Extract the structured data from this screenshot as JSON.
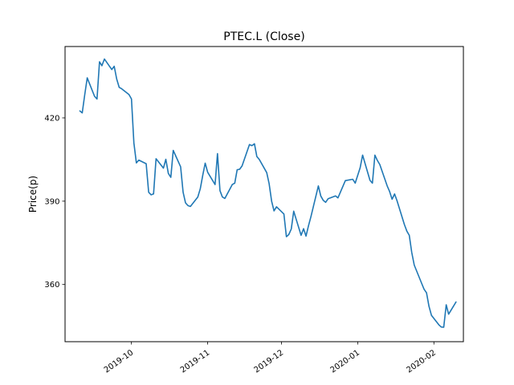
{
  "chart_data": {
    "type": "line",
    "title": "PTEC.L (Close)",
    "ylabel": "Price(p)",
    "xlabel": "",
    "grid": false,
    "legend": false,
    "series_color": "#1f77b4",
    "tick_color": "#000000",
    "background_color": "#ffffff",
    "ylim": [
      339.4,
      445.7
    ],
    "xlim_dates": [
      "2019-09-04",
      "2020-02-13"
    ],
    "yticks": [
      420,
      390,
      360
    ],
    "xticks": [
      {
        "date": "2019-10-01",
        "label": "2019-10"
      },
      {
        "date": "2019-11-01",
        "label": "2019-11"
      },
      {
        "date": "2019-12-01",
        "label": "2019-12"
      },
      {
        "date": "2020-01-01",
        "label": "2020-01"
      },
      {
        "date": "2020-02-01",
        "label": "2020-02"
      }
    ],
    "series": [
      {
        "name": "Close",
        "points": [
          [
            "2019-09-10",
            422.5
          ],
          [
            "2019-09-11",
            421.8
          ],
          [
            "2019-09-12",
            428.3
          ],
          [
            "2019-09-13",
            434.4
          ],
          [
            "2019-09-16",
            427.8
          ],
          [
            "2019-09-17",
            426.8
          ],
          [
            "2019-09-18",
            440.2
          ],
          [
            "2019-09-19",
            438.8
          ],
          [
            "2019-09-20",
            441.2
          ],
          [
            "2019-09-23",
            437.4
          ],
          [
            "2019-09-24",
            438.6
          ],
          [
            "2019-09-25",
            434.0
          ],
          [
            "2019-09-26",
            431.0
          ],
          [
            "2019-09-27",
            430.5
          ],
          [
            "2019-09-30",
            428.4
          ],
          [
            "2019-10-01",
            426.8
          ],
          [
            "2019-10-02",
            411.0
          ],
          [
            "2019-10-03",
            403.8
          ],
          [
            "2019-10-04",
            404.8
          ],
          [
            "2019-10-07",
            403.5
          ],
          [
            "2019-10-08",
            393.2
          ],
          [
            "2019-10-09",
            392.3
          ],
          [
            "2019-10-10",
            392.6
          ],
          [
            "2019-10-11",
            405.3
          ],
          [
            "2019-10-14",
            401.9
          ],
          [
            "2019-10-15",
            405.1
          ],
          [
            "2019-10-16",
            400.0
          ],
          [
            "2019-10-17",
            398.6
          ],
          [
            "2019-10-18",
            408.3
          ],
          [
            "2019-10-21",
            402.4
          ],
          [
            "2019-10-22",
            393.2
          ],
          [
            "2019-10-23",
            389.4
          ],
          [
            "2019-10-24",
            388.4
          ],
          [
            "2019-10-25",
            388.1
          ],
          [
            "2019-10-28",
            391.5
          ],
          [
            "2019-10-29",
            394.5
          ],
          [
            "2019-10-30",
            399.4
          ],
          [
            "2019-10-31",
            403.7
          ],
          [
            "2019-11-01",
            400.4
          ],
          [
            "2019-11-04",
            396.0
          ],
          [
            "2019-11-05",
            407.1
          ],
          [
            "2019-11-06",
            393.8
          ],
          [
            "2019-11-07",
            391.5
          ],
          [
            "2019-11-08",
            391.0
          ],
          [
            "2019-11-11",
            396.0
          ],
          [
            "2019-11-12",
            396.5
          ],
          [
            "2019-11-13",
            401.3
          ],
          [
            "2019-11-14",
            401.5
          ],
          [
            "2019-11-15",
            402.7
          ],
          [
            "2019-11-18",
            410.4
          ],
          [
            "2019-11-19",
            410.0
          ],
          [
            "2019-11-20",
            410.7
          ],
          [
            "2019-11-21",
            406.1
          ],
          [
            "2019-11-22",
            405.0
          ],
          [
            "2019-11-25",
            400.3
          ],
          [
            "2019-11-26",
            396.3
          ],
          [
            "2019-11-27",
            390.0
          ],
          [
            "2019-11-28",
            386.5
          ],
          [
            "2019-11-29",
            388.0
          ],
          [
            "2019-12-02",
            385.4
          ],
          [
            "2019-12-03",
            377.2
          ],
          [
            "2019-12-04",
            378.0
          ],
          [
            "2019-12-05",
            380.0
          ],
          [
            "2019-12-06",
            386.4
          ],
          [
            "2019-12-09",
            377.7
          ],
          [
            "2019-12-10",
            380.1
          ],
          [
            "2019-12-11",
            377.4
          ],
          [
            "2019-12-12",
            381.1
          ],
          [
            "2019-12-13",
            384.5
          ],
          [
            "2019-12-16",
            395.5
          ],
          [
            "2019-12-17",
            391.9
          ],
          [
            "2019-12-18",
            390.3
          ],
          [
            "2019-12-19",
            389.6
          ],
          [
            "2019-12-20",
            390.9
          ],
          [
            "2019-12-23",
            391.9
          ],
          [
            "2019-12-24",
            391.2
          ],
          [
            "2019-12-27",
            397.4
          ],
          [
            "2019-12-30",
            397.9
          ],
          [
            "2019-12-31",
            396.5
          ],
          [
            "2020-01-02",
            402.0
          ],
          [
            "2020-01-03",
            406.6
          ],
          [
            "2020-01-06",
            397.5
          ],
          [
            "2020-01-07",
            396.5
          ],
          [
            "2020-01-08",
            406.6
          ],
          [
            "2020-01-09",
            404.7
          ],
          [
            "2020-01-10",
            403.2
          ],
          [
            "2020-01-13",
            395.5
          ],
          [
            "2020-01-14",
            393.5
          ],
          [
            "2020-01-15",
            390.7
          ],
          [
            "2020-01-16",
            392.6
          ],
          [
            "2020-01-17",
            390.2
          ],
          [
            "2020-01-20",
            381.6
          ],
          [
            "2020-01-21",
            379.2
          ],
          [
            "2020-01-22",
            377.7
          ],
          [
            "2020-01-23",
            371.5
          ],
          [
            "2020-01-24",
            367.0
          ],
          [
            "2020-01-27",
            360.5
          ],
          [
            "2020-01-28",
            358.3
          ],
          [
            "2020-01-29",
            357.0
          ],
          [
            "2020-01-30",
            352.2
          ],
          [
            "2020-01-31",
            348.9
          ],
          [
            "2020-02-03",
            345.5
          ],
          [
            "2020-02-04",
            344.7
          ],
          [
            "2020-02-05",
            344.6
          ],
          [
            "2020-02-06",
            352.7
          ],
          [
            "2020-02-07",
            349.3
          ],
          [
            "2020-02-10",
            353.7
          ]
        ]
      }
    ]
  }
}
